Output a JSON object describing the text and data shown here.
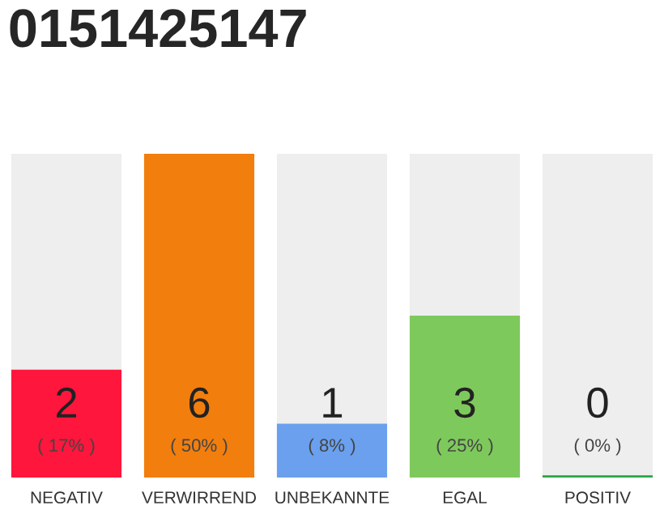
{
  "chart_data": {
    "type": "bar",
    "title": "0151425147",
    "categories": [
      "NEGATIV",
      "VERWIRREND",
      "UNBEKANNTE",
      "EGAL",
      "POSITIV"
    ],
    "values": [
      2,
      6,
      1,
      3,
      0
    ],
    "colors": [
      "#ff163c",
      "#f27e0d",
      "#6aa0ee",
      "#7ec95c",
      "#28a745"
    ],
    "value_labels": [
      "2\n( 17% )",
      "6\n( 50% )",
      "1\n( 8% )",
      "3\n( 25% )",
      "0\n( 0% )"
    ],
    "grid": false,
    "legend": false
  }
}
